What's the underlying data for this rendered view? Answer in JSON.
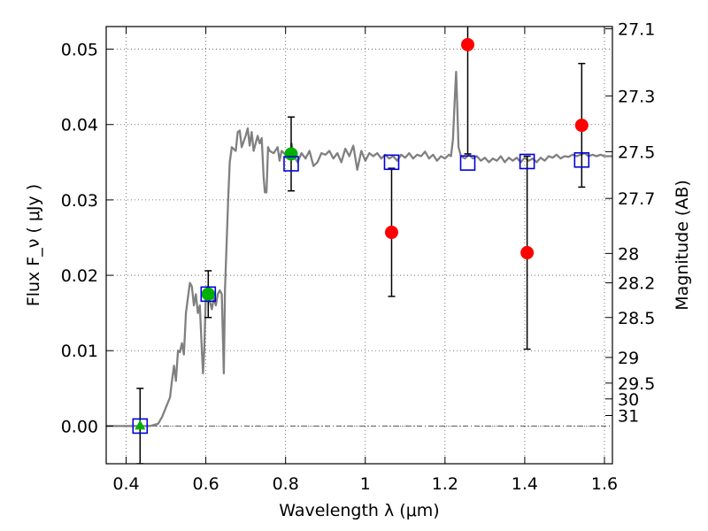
{
  "chart_data": {
    "type": "scatter",
    "xlabel": "Wavelength  λ (μm)",
    "ylabel": "Flux  F_ν  ( μJy )",
    "y2label": "Magnitude (AB)",
    "xlim": [
      0.35,
      1.62
    ],
    "ylim": [
      -0.005,
      0.053
    ],
    "grid": true,
    "x_ticks": [
      {
        "value": 0.4,
        "label": "0.4"
      },
      {
        "value": 0.6,
        "label": "0.6"
      },
      {
        "value": 0.8,
        "label": "0.8"
      },
      {
        "value": 1.0,
        "label": "1"
      },
      {
        "value": 1.2,
        "label": "1.2"
      },
      {
        "value": 1.4,
        "label": "1.4"
      },
      {
        "value": 1.6,
        "label": "1.6"
      }
    ],
    "y_ticks": [
      {
        "value": 0.0,
        "label": "0.00"
      },
      {
        "value": 0.01,
        "label": "0.01"
      },
      {
        "value": 0.02,
        "label": "0.02"
      },
      {
        "value": 0.03,
        "label": "0.03"
      },
      {
        "value": 0.04,
        "label": "0.04"
      },
      {
        "value": 0.05,
        "label": "0.05"
      }
    ],
    "y2_ticks": [
      {
        "flux": 0.0527,
        "label": "27.1"
      },
      {
        "flux": 0.0438,
        "label": "27.3"
      },
      {
        "flux": 0.0364,
        "label": "27.5"
      },
      {
        "flux": 0.0302,
        "label": "27.7"
      },
      {
        "flux": 0.0229,
        "label": "28"
      },
      {
        "flux": 0.019,
        "label": "28.2"
      },
      {
        "flux": 0.0144,
        "label": "28.5"
      },
      {
        "flux": 0.0091,
        "label": "29"
      },
      {
        "flux": 0.0057,
        "label": "29.5"
      },
      {
        "flux": 0.0036,
        "label": "30"
      },
      {
        "flux": 0.0014,
        "label": "31"
      }
    ],
    "colors": {
      "model": "#808080",
      "detection": "#00b000",
      "upper_limit": "#00b000",
      "non_detection": "#ff0000",
      "model_photometry": "#0000dd",
      "errorbar": "#000000",
      "grid": "#555555",
      "zero_line": "#555555"
    },
    "series": [
      {
        "kind": "model_spectrum",
        "style": "line",
        "points": [
          [
            0.35,
            0.0
          ],
          [
            0.46,
            0.0
          ],
          [
            0.48,
            0.0003
          ],
          [
            0.49,
            0.0012
          ],
          [
            0.5,
            0.0025
          ],
          [
            0.51,
            0.0038
          ],
          [
            0.515,
            0.006
          ],
          [
            0.52,
            0.008
          ],
          [
            0.525,
            0.006
          ],
          [
            0.53,
            0.01
          ],
          [
            0.535,
            0.0098
          ],
          [
            0.54,
            0.011
          ],
          [
            0.545,
            0.0095
          ],
          [
            0.55,
            0.015
          ],
          [
            0.555,
            0.017
          ],
          [
            0.56,
            0.019
          ],
          [
            0.565,
            0.0185
          ],
          [
            0.57,
            0.016
          ],
          [
            0.575,
            0.0175
          ],
          [
            0.58,
            0.015
          ],
          [
            0.585,
            0.016
          ],
          [
            0.59,
            0.01
          ],
          [
            0.593,
            0.007
          ],
          [
            0.596,
            0.01
          ],
          [
            0.6,
            0.0175
          ],
          [
            0.605,
            0.0185
          ],
          [
            0.61,
            0.0165
          ],
          [
            0.615,
            0.0155
          ],
          [
            0.62,
            0.017
          ],
          [
            0.625,
            0.016
          ],
          [
            0.63,
            0.0175
          ],
          [
            0.635,
            0.018
          ],
          [
            0.64,
            0.0175
          ],
          [
            0.645,
            0.007
          ],
          [
            0.648,
            0.018
          ],
          [
            0.652,
            0.024
          ],
          [
            0.656,
            0.03
          ],
          [
            0.66,
            0.035
          ],
          [
            0.665,
            0.037
          ],
          [
            0.675,
            0.0365
          ],
          [
            0.68,
            0.039
          ],
          [
            0.685,
            0.0392
          ],
          [
            0.69,
            0.037
          ],
          [
            0.7,
            0.0385
          ],
          [
            0.705,
            0.0395
          ],
          [
            0.71,
            0.0372
          ],
          [
            0.715,
            0.039
          ],
          [
            0.72,
            0.0365
          ],
          [
            0.73,
            0.0385
          ],
          [
            0.735,
            0.0375
          ],
          [
            0.74,
            0.0382
          ],
          [
            0.745,
            0.033
          ],
          [
            0.748,
            0.031
          ],
          [
            0.752,
            0.031
          ],
          [
            0.756,
            0.037
          ],
          [
            0.76,
            0.0365
          ],
          [
            0.77,
            0.0362
          ],
          [
            0.78,
            0.037
          ],
          [
            0.785,
            0.0352
          ],
          [
            0.79,
            0.0365
          ],
          [
            0.8,
            0.036
          ],
          [
            0.81,
            0.0355
          ],
          [
            0.815,
            0.0375
          ],
          [
            0.82,
            0.036
          ],
          [
            0.83,
            0.035
          ],
          [
            0.84,
            0.0362
          ],
          [
            0.85,
            0.0355
          ],
          [
            0.86,
            0.0365
          ],
          [
            0.87,
            0.0345
          ],
          [
            0.88,
            0.035
          ],
          [
            0.89,
            0.0362
          ],
          [
            0.9,
            0.036
          ],
          [
            0.91,
            0.0365
          ],
          [
            0.92,
            0.0355
          ],
          [
            0.93,
            0.0362
          ],
          [
            0.94,
            0.035
          ],
          [
            0.95,
            0.0368
          ],
          [
            0.96,
            0.0358
          ],
          [
            0.97,
            0.0372
          ],
          [
            0.98,
            0.034
          ],
          [
            0.99,
            0.0365
          ],
          [
            1.0,
            0.0352
          ],
          [
            1.01,
            0.0362
          ],
          [
            1.02,
            0.0358
          ],
          [
            1.03,
            0.0362
          ],
          [
            1.04,
            0.0355
          ],
          [
            1.05,
            0.036
          ],
          [
            1.06,
            0.0355
          ],
          [
            1.07,
            0.0358
          ],
          [
            1.08,
            0.0352
          ],
          [
            1.09,
            0.036
          ],
          [
            1.1,
            0.0356
          ],
          [
            1.11,
            0.0362
          ],
          [
            1.12,
            0.0355
          ],
          [
            1.13,
            0.036
          ],
          [
            1.14,
            0.0358
          ],
          [
            1.15,
            0.0364
          ],
          [
            1.16,
            0.0355
          ],
          [
            1.17,
            0.036
          ],
          [
            1.18,
            0.0352
          ],
          [
            1.19,
            0.0358
          ],
          [
            1.2,
            0.0355
          ],
          [
            1.21,
            0.036
          ],
          [
            1.215,
            0.0358
          ],
          [
            1.22,
            0.038
          ],
          [
            1.225,
            0.044
          ],
          [
            1.228,
            0.047
          ],
          [
            1.231,
            0.042
          ],
          [
            1.234,
            0.037
          ],
          [
            1.24,
            0.0358
          ],
          [
            1.25,
            0.0355
          ],
          [
            1.26,
            0.036
          ],
          [
            1.27,
            0.0355
          ],
          [
            1.28,
            0.0358
          ],
          [
            1.29,
            0.0352
          ],
          [
            1.3,
            0.0356
          ],
          [
            1.31,
            0.035
          ],
          [
            1.32,
            0.0355
          ],
          [
            1.33,
            0.0352
          ],
          [
            1.34,
            0.0358
          ],
          [
            1.35,
            0.035
          ],
          [
            1.36,
            0.0356
          ],
          [
            1.37,
            0.0352
          ],
          [
            1.38,
            0.0356
          ],
          [
            1.39,
            0.035
          ],
          [
            1.4,
            0.0356
          ],
          [
            1.41,
            0.0352
          ],
          [
            1.42,
            0.0355
          ],
          [
            1.43,
            0.035
          ],
          [
            1.44,
            0.0356
          ],
          [
            1.45,
            0.0352
          ],
          [
            1.46,
            0.0358
          ],
          [
            1.47,
            0.0356
          ],
          [
            1.48,
            0.036
          ],
          [
            1.49,
            0.0355
          ],
          [
            1.5,
            0.0358
          ],
          [
            1.51,
            0.0357
          ],
          [
            1.52,
            0.036
          ],
          [
            1.53,
            0.0358
          ],
          [
            1.54,
            0.036
          ],
          [
            1.55,
            0.0362
          ],
          [
            1.56,
            0.0358
          ],
          [
            1.57,
            0.036
          ],
          [
            1.58,
            0.0358
          ],
          [
            1.59,
            0.036
          ],
          [
            1.6,
            0.0358
          ],
          [
            1.62,
            0.0358
          ]
        ]
      },
      {
        "kind": "model_photometry",
        "marker": "open-square",
        "points": [
          {
            "x": 0.435,
            "y": 0.0
          },
          {
            "x": 0.606,
            "y": 0.0175
          },
          {
            "x": 0.814,
            "y": 0.0348
          },
          {
            "x": 1.066,
            "y": 0.035
          },
          {
            "x": 1.257,
            "y": 0.0349
          },
          {
            "x": 1.406,
            "y": 0.0351
          },
          {
            "x": 1.543,
            "y": 0.0353
          }
        ]
      },
      {
        "kind": "observed",
        "points": [
          {
            "x": 0.435,
            "y": 0.0,
            "err": 0.005,
            "marker": "triangle",
            "status": "upper_limit"
          },
          {
            "x": 0.606,
            "y": 0.0175,
            "err": 0.0031,
            "marker": "circle",
            "status": "detection"
          },
          {
            "x": 0.814,
            "y": 0.0361,
            "err": 0.0049,
            "marker": "circle",
            "status": "detection"
          },
          {
            "x": 1.066,
            "y": 0.0257,
            "err": 0.0085,
            "marker": "circle",
            "status": "non_detection"
          },
          {
            "x": 1.257,
            "y": 0.0506,
            "err": 0.0145,
            "marker": "circle",
            "status": "non_detection"
          },
          {
            "x": 1.406,
            "y": 0.023,
            "err": 0.0128,
            "marker": "circle",
            "status": "non_detection"
          },
          {
            "x": 1.543,
            "y": 0.0399,
            "err": 0.0082,
            "marker": "circle",
            "status": "non_detection"
          }
        ]
      }
    ]
  }
}
